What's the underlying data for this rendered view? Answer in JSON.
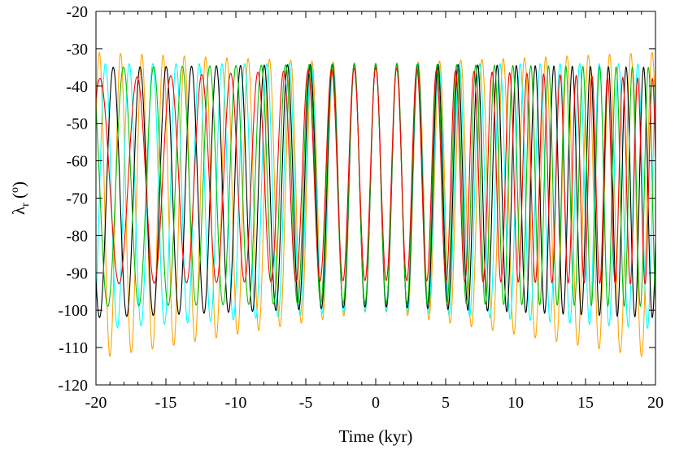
{
  "chart_data": {
    "type": "line",
    "title": "",
    "xlabel": "Time (kyr)",
    "ylabel": {
      "symbol": "λ",
      "subscript": "r",
      "unit_open": " (",
      "superscript": "o",
      "unit_close": ")"
    },
    "xlim": [
      -20,
      20
    ],
    "ylim": [
      -120,
      -20
    ],
    "x_ticks": [
      -20,
      -15,
      -10,
      -5,
      0,
      5,
      10,
      15,
      20
    ],
    "y_ticks": [
      -120,
      -110,
      -100,
      -90,
      -80,
      -70,
      -60,
      -50,
      -40,
      -30,
      -20
    ],
    "grid": false,
    "legend": "none",
    "oscillation_period_kyr": 1.52,
    "series": [
      {
        "color": "#ffa500",
        "max_at_edges": -31,
        "max_at_center": -34,
        "min_at_edges": -113,
        "min_at_center": -100,
        "phase_kyr": 0.0
      },
      {
        "color": "#00ffff",
        "max_at_edges": -34,
        "max_at_center": -34,
        "min_at_edges": -105,
        "min_at_center": -100,
        "phase_kyr": 0.0
      },
      {
        "color": "#000000",
        "max_at_edges": -35,
        "max_at_center": -34,
        "min_at_edges": -102,
        "min_at_center": -99,
        "phase_kyr": 0.0
      },
      {
        "color": "#00c000",
        "max_at_edges": -35,
        "max_at_center": -34,
        "min_at_edges": -99,
        "min_at_center": -98,
        "phase_kyr": 0.0
      },
      {
        "color": "#ff0000",
        "max_at_edges": -38,
        "max_at_center": -35,
        "min_at_edges": -93,
        "min_at_center": -92,
        "phase_kyr": 0.0
      }
    ]
  }
}
